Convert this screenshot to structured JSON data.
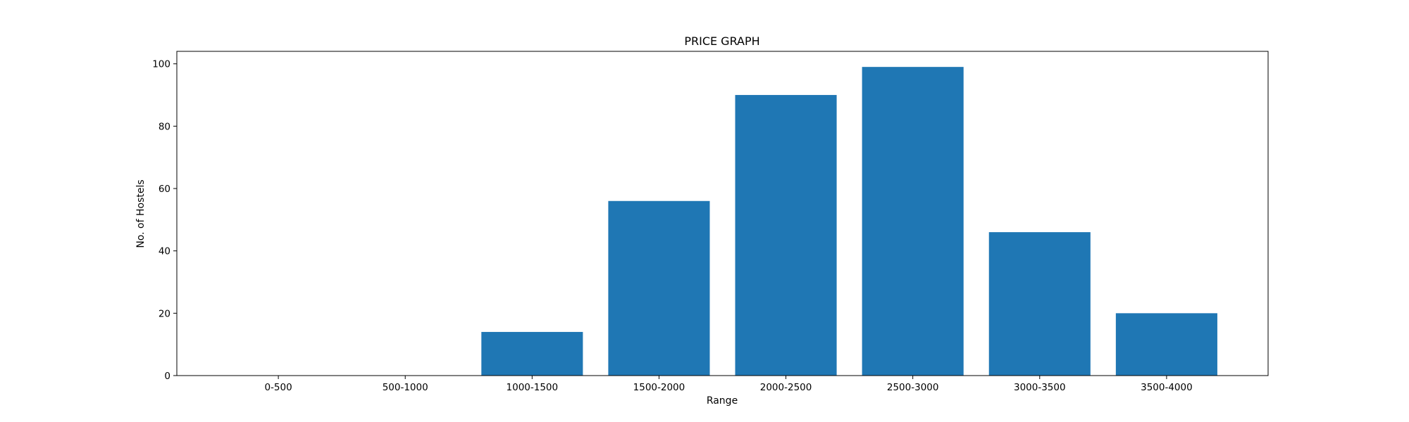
{
  "chart_data": {
    "type": "bar",
    "title": "PRICE GRAPH",
    "xlabel": "Range",
    "ylabel": "No. of Hostels",
    "categories": [
      "0-500",
      "500-1000",
      "1000-1500",
      "1500-2000",
      "2000-2500",
      "2500-3000",
      "3000-3500",
      "3500-4000"
    ],
    "values": [
      0,
      0,
      14,
      56,
      90,
      99,
      46,
      20
    ],
    "ylim": [
      0,
      104
    ],
    "yticks": [
      0,
      20,
      40,
      60,
      80,
      100
    ],
    "grid": false,
    "bar_color": "#1f77b4"
  }
}
